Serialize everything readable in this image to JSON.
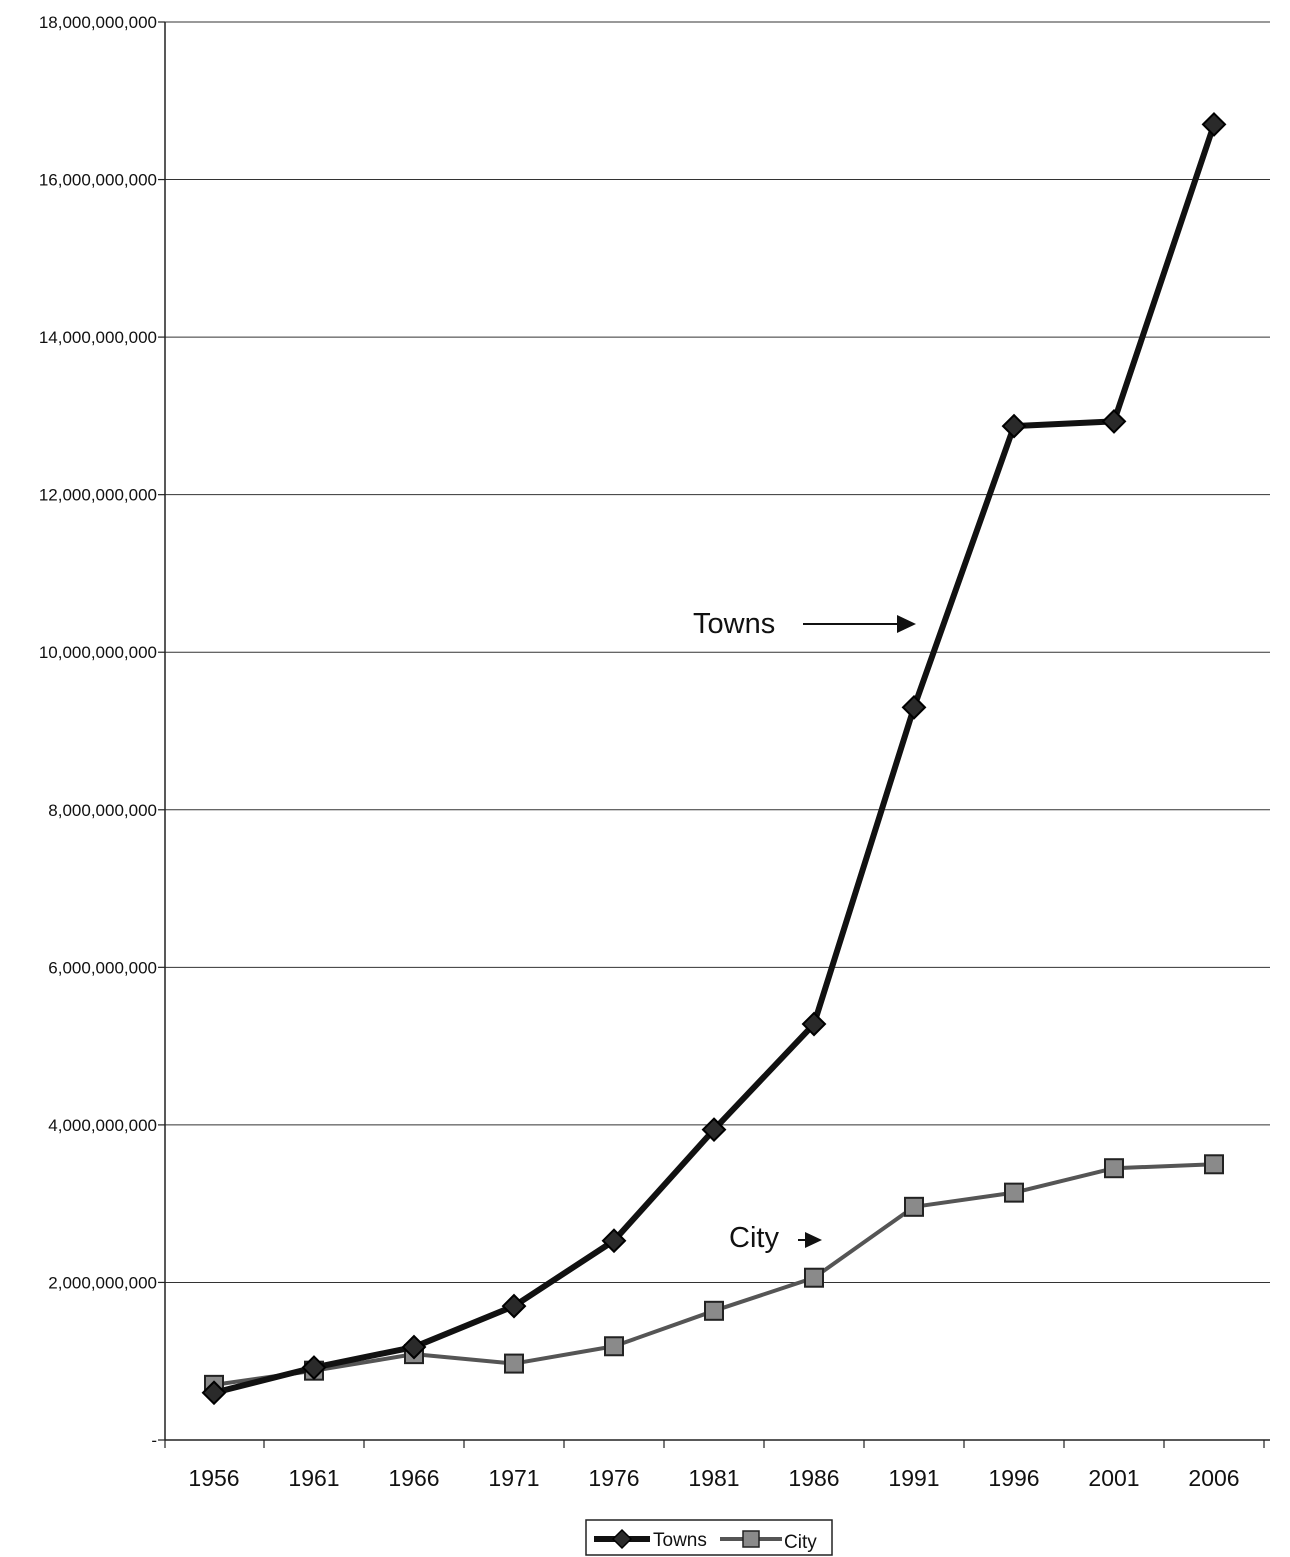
{
  "chart_data": {
    "type": "line",
    "categories": [
      "1956",
      "1961",
      "1966",
      "1971",
      "1976",
      "1981",
      "1986",
      "1991",
      "1996",
      "2001",
      "2006"
    ],
    "ylim": [
      0,
      18000000000
    ],
    "yticks": [
      0,
      2000000000,
      4000000000,
      6000000000,
      8000000000,
      10000000000,
      12000000000,
      14000000000,
      16000000000,
      18000000000
    ],
    "ytick_labels": [
      "-",
      "2,000,000,000",
      "4,000,000,000",
      "6,000,000,000",
      "8,000,000,000",
      "10,000,000,000",
      "12,000,000,000",
      "14,000,000,000",
      "16,000,000,000",
      "18,000,000,000"
    ],
    "grid": "horizontal",
    "legend_position": "bottom",
    "series": [
      {
        "name": "Towns",
        "color": "#111111",
        "marker": "diamond",
        "values": [
          600000000,
          920000000,
          1180000000,
          1700000000,
          2530000000,
          3940000000,
          5280000000,
          9300000000,
          12870000000,
          12930000000,
          16700000000
        ]
      },
      {
        "name": "City",
        "color": "#555555",
        "marker": "square",
        "values": [
          700000000,
          880000000,
          1090000000,
          970000000,
          1190000000,
          1640000000,
          2060000000,
          2960000000,
          3140000000,
          3450000000,
          3500000000
        ]
      }
    ],
    "annotations": [
      {
        "text": "Towns",
        "series": "Towns"
      },
      {
        "text": "City",
        "series": "City"
      }
    ]
  }
}
